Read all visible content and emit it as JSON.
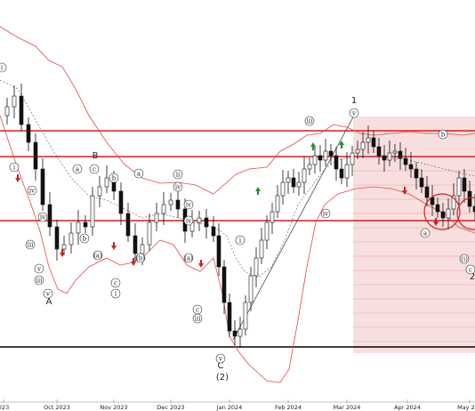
{
  "chart_data": {
    "type": "candlestick",
    "title": "",
    "xlabel": "",
    "ylabel": "",
    "x_ticks": [
      "023",
      "Oct 2023",
      "Nov 2023",
      "Dec 2023",
      "Jan 2024",
      "Feb 2024",
      "Mar 2024",
      "Apr 2024",
      "May 202"
    ],
    "colors": {
      "bullish": "#ffffff",
      "bearish": "#111111",
      "bollinger": "#e04a4a",
      "resistance": "#d61f1f",
      "support": "#000000",
      "zone": "#f4c9c9",
      "arrow_up": "#2a8a2a",
      "arrow_down": "#cc2222"
    },
    "wave_labels": {
      "big": [
        "B",
        "A",
        "C",
        "(2)",
        "1",
        "2"
      ],
      "roman": [
        "i",
        "ii",
        "iii",
        "iv",
        "v"
      ],
      "letters": [
        "a",
        "b",
        "c"
      ],
      "paren": [
        "(a)",
        "(b)",
        "(c)"
      ]
    }
  }
}
